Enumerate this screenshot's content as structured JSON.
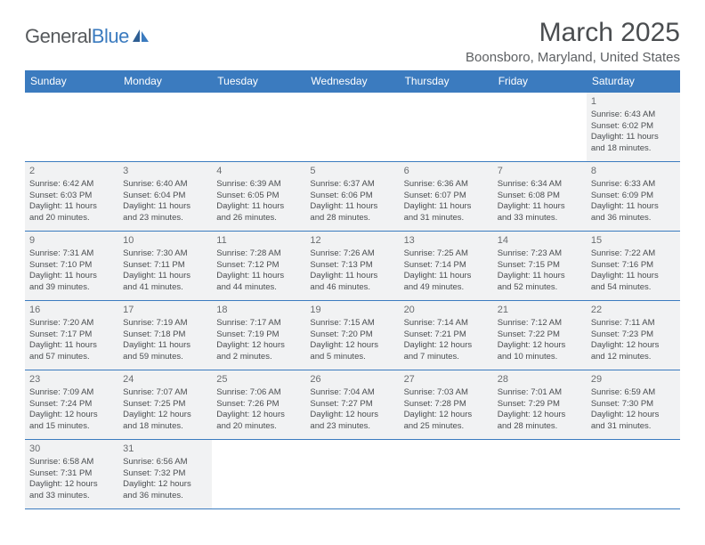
{
  "logo": {
    "text1": "General",
    "text2": "Blue"
  },
  "title": "March 2025",
  "location": "Boonsboro, Maryland, United States",
  "header_bg": "#3b7bbf",
  "header_fg": "#ffffff",
  "cell_bg": "#f1f2f3",
  "border_color": "#3b7bbf",
  "text_color": "#4a4d50",
  "daynum_color": "#6a6d70",
  "days_of_week": [
    "Sunday",
    "Monday",
    "Tuesday",
    "Wednesday",
    "Thursday",
    "Friday",
    "Saturday"
  ],
  "weeks": [
    [
      null,
      null,
      null,
      null,
      null,
      null,
      {
        "n": "1",
        "sunrise": "Sunrise: 6:43 AM",
        "sunset": "Sunset: 6:02 PM",
        "day1": "Daylight: 11 hours",
        "day2": "and 18 minutes."
      }
    ],
    [
      {
        "n": "2",
        "sunrise": "Sunrise: 6:42 AM",
        "sunset": "Sunset: 6:03 PM",
        "day1": "Daylight: 11 hours",
        "day2": "and 20 minutes."
      },
      {
        "n": "3",
        "sunrise": "Sunrise: 6:40 AM",
        "sunset": "Sunset: 6:04 PM",
        "day1": "Daylight: 11 hours",
        "day2": "and 23 minutes."
      },
      {
        "n": "4",
        "sunrise": "Sunrise: 6:39 AM",
        "sunset": "Sunset: 6:05 PM",
        "day1": "Daylight: 11 hours",
        "day2": "and 26 minutes."
      },
      {
        "n": "5",
        "sunrise": "Sunrise: 6:37 AM",
        "sunset": "Sunset: 6:06 PM",
        "day1": "Daylight: 11 hours",
        "day2": "and 28 minutes."
      },
      {
        "n": "6",
        "sunrise": "Sunrise: 6:36 AM",
        "sunset": "Sunset: 6:07 PM",
        "day1": "Daylight: 11 hours",
        "day2": "and 31 minutes."
      },
      {
        "n": "7",
        "sunrise": "Sunrise: 6:34 AM",
        "sunset": "Sunset: 6:08 PM",
        "day1": "Daylight: 11 hours",
        "day2": "and 33 minutes."
      },
      {
        "n": "8",
        "sunrise": "Sunrise: 6:33 AM",
        "sunset": "Sunset: 6:09 PM",
        "day1": "Daylight: 11 hours",
        "day2": "and 36 minutes."
      }
    ],
    [
      {
        "n": "9",
        "sunrise": "Sunrise: 7:31 AM",
        "sunset": "Sunset: 7:10 PM",
        "day1": "Daylight: 11 hours",
        "day2": "and 39 minutes."
      },
      {
        "n": "10",
        "sunrise": "Sunrise: 7:30 AM",
        "sunset": "Sunset: 7:11 PM",
        "day1": "Daylight: 11 hours",
        "day2": "and 41 minutes."
      },
      {
        "n": "11",
        "sunrise": "Sunrise: 7:28 AM",
        "sunset": "Sunset: 7:12 PM",
        "day1": "Daylight: 11 hours",
        "day2": "and 44 minutes."
      },
      {
        "n": "12",
        "sunrise": "Sunrise: 7:26 AM",
        "sunset": "Sunset: 7:13 PM",
        "day1": "Daylight: 11 hours",
        "day2": "and 46 minutes."
      },
      {
        "n": "13",
        "sunrise": "Sunrise: 7:25 AM",
        "sunset": "Sunset: 7:14 PM",
        "day1": "Daylight: 11 hours",
        "day2": "and 49 minutes."
      },
      {
        "n": "14",
        "sunrise": "Sunrise: 7:23 AM",
        "sunset": "Sunset: 7:15 PM",
        "day1": "Daylight: 11 hours",
        "day2": "and 52 minutes."
      },
      {
        "n": "15",
        "sunrise": "Sunrise: 7:22 AM",
        "sunset": "Sunset: 7:16 PM",
        "day1": "Daylight: 11 hours",
        "day2": "and 54 minutes."
      }
    ],
    [
      {
        "n": "16",
        "sunrise": "Sunrise: 7:20 AM",
        "sunset": "Sunset: 7:17 PM",
        "day1": "Daylight: 11 hours",
        "day2": "and 57 minutes."
      },
      {
        "n": "17",
        "sunrise": "Sunrise: 7:19 AM",
        "sunset": "Sunset: 7:18 PM",
        "day1": "Daylight: 11 hours",
        "day2": "and 59 minutes."
      },
      {
        "n": "18",
        "sunrise": "Sunrise: 7:17 AM",
        "sunset": "Sunset: 7:19 PM",
        "day1": "Daylight: 12 hours",
        "day2": "and 2 minutes."
      },
      {
        "n": "19",
        "sunrise": "Sunrise: 7:15 AM",
        "sunset": "Sunset: 7:20 PM",
        "day1": "Daylight: 12 hours",
        "day2": "and 5 minutes."
      },
      {
        "n": "20",
        "sunrise": "Sunrise: 7:14 AM",
        "sunset": "Sunset: 7:21 PM",
        "day1": "Daylight: 12 hours",
        "day2": "and 7 minutes."
      },
      {
        "n": "21",
        "sunrise": "Sunrise: 7:12 AM",
        "sunset": "Sunset: 7:22 PM",
        "day1": "Daylight: 12 hours",
        "day2": "and 10 minutes."
      },
      {
        "n": "22",
        "sunrise": "Sunrise: 7:11 AM",
        "sunset": "Sunset: 7:23 PM",
        "day1": "Daylight: 12 hours",
        "day2": "and 12 minutes."
      }
    ],
    [
      {
        "n": "23",
        "sunrise": "Sunrise: 7:09 AM",
        "sunset": "Sunset: 7:24 PM",
        "day1": "Daylight: 12 hours",
        "day2": "and 15 minutes."
      },
      {
        "n": "24",
        "sunrise": "Sunrise: 7:07 AM",
        "sunset": "Sunset: 7:25 PM",
        "day1": "Daylight: 12 hours",
        "day2": "and 18 minutes."
      },
      {
        "n": "25",
        "sunrise": "Sunrise: 7:06 AM",
        "sunset": "Sunset: 7:26 PM",
        "day1": "Daylight: 12 hours",
        "day2": "and 20 minutes."
      },
      {
        "n": "26",
        "sunrise": "Sunrise: 7:04 AM",
        "sunset": "Sunset: 7:27 PM",
        "day1": "Daylight: 12 hours",
        "day2": "and 23 minutes."
      },
      {
        "n": "27",
        "sunrise": "Sunrise: 7:03 AM",
        "sunset": "Sunset: 7:28 PM",
        "day1": "Daylight: 12 hours",
        "day2": "and 25 minutes."
      },
      {
        "n": "28",
        "sunrise": "Sunrise: 7:01 AM",
        "sunset": "Sunset: 7:29 PM",
        "day1": "Daylight: 12 hours",
        "day2": "and 28 minutes."
      },
      {
        "n": "29",
        "sunrise": "Sunrise: 6:59 AM",
        "sunset": "Sunset: 7:30 PM",
        "day1": "Daylight: 12 hours",
        "day2": "and 31 minutes."
      }
    ],
    [
      {
        "n": "30",
        "sunrise": "Sunrise: 6:58 AM",
        "sunset": "Sunset: 7:31 PM",
        "day1": "Daylight: 12 hours",
        "day2": "and 33 minutes."
      },
      {
        "n": "31",
        "sunrise": "Sunrise: 6:56 AM",
        "sunset": "Sunset: 7:32 PM",
        "day1": "Daylight: 12 hours",
        "day2": "and 36 minutes."
      },
      null,
      null,
      null,
      null,
      null
    ]
  ]
}
